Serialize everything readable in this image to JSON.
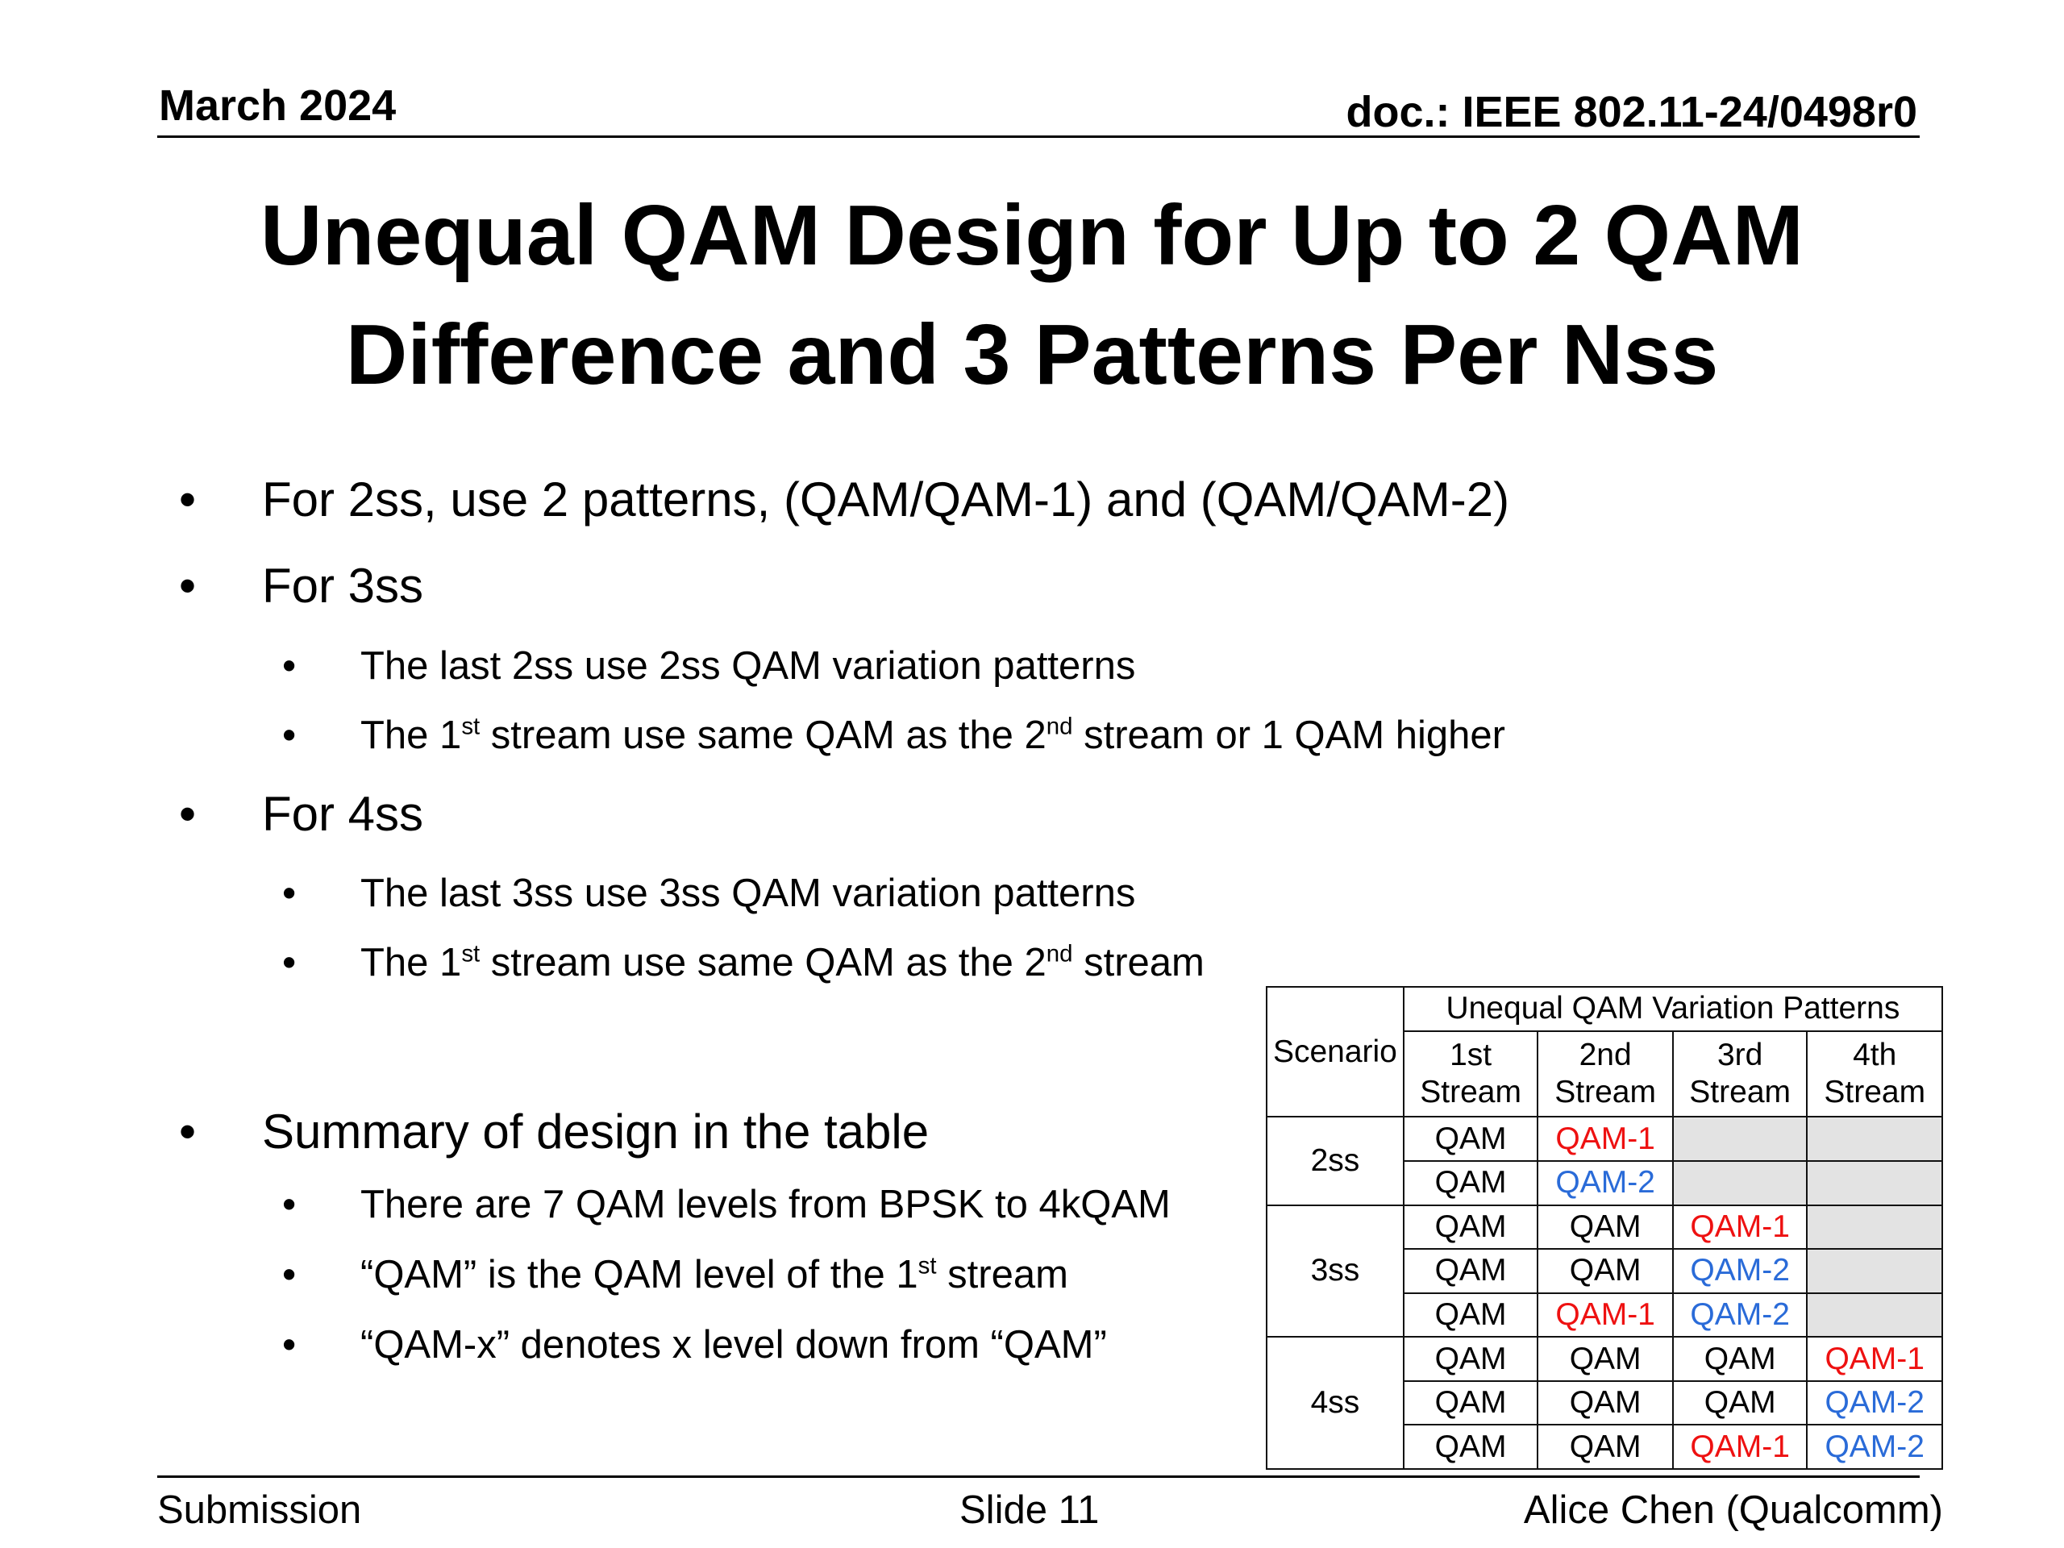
{
  "header": {
    "date": "March 2024",
    "doc": "doc.: IEEE 802.11-24/0498r0"
  },
  "title": {
    "line1": "Unequal QAM Design for Up to 2 QAM",
    "line2": "Difference and 3 Patterns Per Nss"
  },
  "bullets": {
    "b2ss": "For 2ss, use 2 patterns, (QAM/QAM-1) and (QAM/QAM-2)",
    "b3ss": "For 3ss",
    "b3ss_sub1": "The last 2ss use 2ss QAM variation patterns",
    "b3ss_sub2": {
      "a": "The 1",
      "sup1": "st",
      "b": " stream use same QAM as the 2",
      "sup2": "nd",
      "c": " stream or 1 QAM higher"
    },
    "b4ss": "For 4ss",
    "b4ss_sub1": "The last 3ss use 3ss QAM variation patterns",
    "b4ss_sub2": {
      "a": "The 1",
      "sup1": "st",
      "b": " stream use same QAM as the 2",
      "sup2": "nd",
      "c": " stream"
    },
    "summary": "Summary of design in the table",
    "summary_sub1": "There are 7 QAM levels from BPSK to 4kQAM",
    "summary_sub2": {
      "a": "“QAM” is the QAM level of the 1",
      "sup": "st",
      "b": " stream"
    },
    "summary_sub3": "“QAM-x” denotes x level down from “QAM”"
  },
  "table": {
    "header_main": "Unequal QAM Variation Patterns",
    "header_scenario": "Scenario",
    "streams": [
      {
        "l1": "1st",
        "l2": "Stream"
      },
      {
        "l1": "2nd",
        "l2": "Stream"
      },
      {
        "l1": "3rd",
        "l2": "Stream"
      },
      {
        "l1": "4th",
        "l2": "Stream"
      }
    ],
    "scenarios": [
      "2ss",
      "3ss",
      "4ss"
    ],
    "rows": [
      [
        "QAM",
        "QAM-1",
        "",
        ""
      ],
      [
        "QAM",
        "QAM-2",
        "",
        ""
      ],
      [
        "QAM",
        "QAM",
        "QAM-1",
        ""
      ],
      [
        "QAM",
        "QAM",
        "QAM-2",
        ""
      ],
      [
        "QAM",
        "QAM-1",
        "QAM-2",
        ""
      ],
      [
        "QAM",
        "QAM",
        "QAM",
        "QAM-1"
      ],
      [
        "QAM",
        "QAM",
        "QAM",
        "QAM-2"
      ],
      [
        "QAM",
        "QAM",
        "QAM-1",
        "QAM-2"
      ]
    ],
    "colors": {
      "qam1": "#ee1111",
      "qam2": "#2a6bd8",
      "empty_cell": "#e3e3e3"
    }
  },
  "footer": {
    "left": "Submission",
    "center": "Slide 11",
    "right": "Alice Chen (Qualcomm)"
  },
  "bullet_glyph": "•"
}
